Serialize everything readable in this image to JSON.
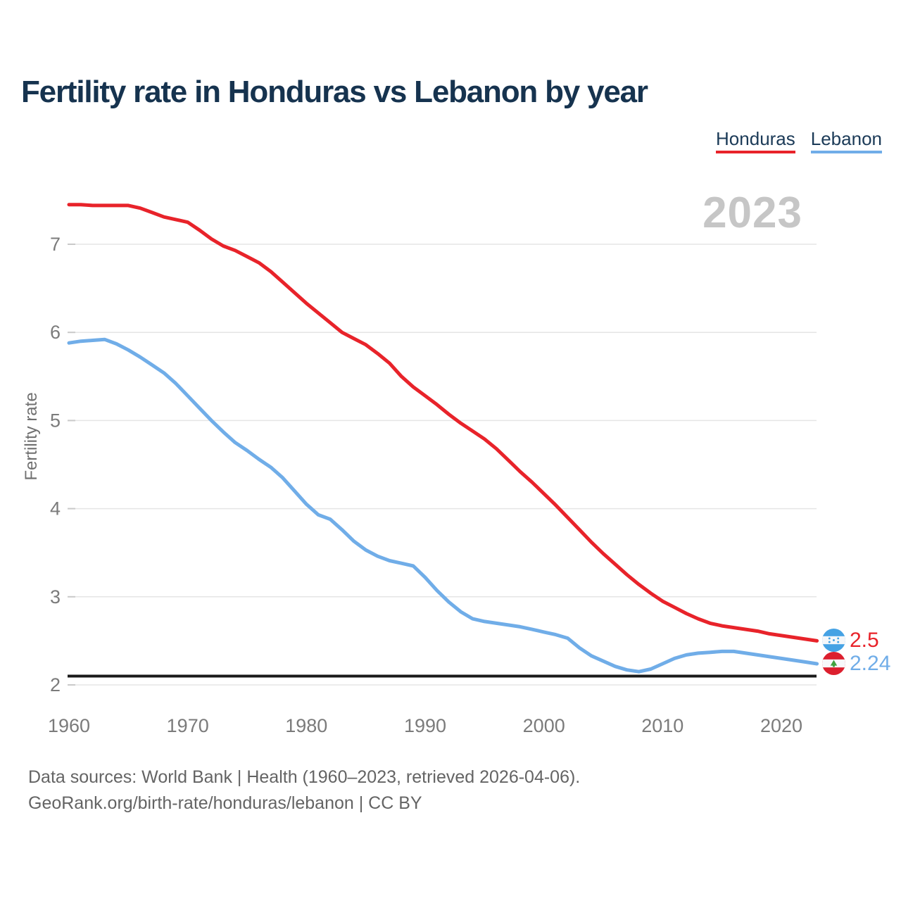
{
  "header": {
    "title": "Fertility rate in Honduras vs Lebanon by year"
  },
  "legend": [
    {
      "label": "Honduras",
      "color": "#e8232a"
    },
    {
      "label": "Lebanon",
      "color": "#70ade8"
    }
  ],
  "watermark": "2023",
  "end_labels": [
    {
      "country": "Honduras",
      "value": "2.5",
      "color": "#e8232a",
      "flag_icon": "honduras-flag"
    },
    {
      "country": "Lebanon",
      "value": "2.24",
      "color": "#70ade8",
      "flag_icon": "lebanon-flag"
    }
  ],
  "footer": {
    "line1": "Data sources: World Bank | Health (1960–2023, retrieved 2026-04-06).",
    "line2": "GeoRank.org/birth-rate/honduras/lebanon | CC BY"
  },
  "chart_data": {
    "type": "line",
    "title": "Fertility rate in Honduras vs Lebanon by year",
    "xlabel": "",
    "ylabel": "Fertility rate",
    "xlim": [
      1960,
      2023
    ],
    "ylim": [
      2,
      7.6
    ],
    "grid": "horizontal",
    "legend_position": "top-right",
    "x_ticks": [
      1960,
      1970,
      1980,
      1990,
      2000,
      2010,
      2020
    ],
    "y_ticks": [
      2,
      3,
      4,
      5,
      6,
      7
    ],
    "replacement_line": {
      "value": 2.1,
      "color": "#1a1a1a"
    },
    "x": [
      1960,
      1961,
      1962,
      1963,
      1964,
      1965,
      1966,
      1967,
      1968,
      1969,
      1970,
      1971,
      1972,
      1973,
      1974,
      1975,
      1976,
      1977,
      1978,
      1979,
      1980,
      1981,
      1982,
      1983,
      1984,
      1985,
      1986,
      1987,
      1988,
      1989,
      1990,
      1991,
      1992,
      1993,
      1994,
      1995,
      1996,
      1997,
      1998,
      1999,
      2000,
      2001,
      2002,
      2003,
      2004,
      2005,
      2006,
      2007,
      2008,
      2009,
      2010,
      2011,
      2012,
      2013,
      2014,
      2015,
      2016,
      2017,
      2018,
      2019,
      2020,
      2021,
      2022,
      2023
    ],
    "series": [
      {
        "name": "Honduras",
        "color": "#e8232a",
        "end_value": 2.5,
        "values": [
          7.45,
          7.45,
          7.44,
          7.44,
          7.44,
          7.44,
          7.41,
          7.36,
          7.31,
          7.28,
          7.25,
          7.16,
          7.06,
          6.98,
          6.93,
          6.86,
          6.79,
          6.69,
          6.57,
          6.45,
          6.33,
          6.22,
          6.11,
          6.0,
          5.93,
          5.86,
          5.76,
          5.65,
          5.5,
          5.38,
          5.28,
          5.18,
          5.07,
          4.97,
          4.88,
          4.79,
          4.68,
          4.55,
          4.42,
          4.3,
          4.17,
          4.04,
          3.9,
          3.76,
          3.62,
          3.49,
          3.37,
          3.25,
          3.14,
          3.04,
          2.95,
          2.88,
          2.81,
          2.75,
          2.7,
          2.67,
          2.65,
          2.63,
          2.61,
          2.58,
          2.56,
          2.54,
          2.52,
          2.5
        ]
      },
      {
        "name": "Lebanon",
        "color": "#70ade8",
        "end_value": 2.24,
        "values": [
          5.88,
          5.9,
          5.91,
          5.92,
          5.87,
          5.8,
          5.72,
          5.63,
          5.54,
          5.42,
          5.28,
          5.14,
          5.0,
          4.87,
          4.75,
          4.66,
          4.56,
          4.47,
          4.35,
          4.2,
          4.05,
          3.93,
          3.88,
          3.76,
          3.63,
          3.53,
          3.46,
          3.41,
          3.38,
          3.35,
          3.22,
          3.07,
          2.94,
          2.83,
          2.75,
          2.72,
          2.7,
          2.68,
          2.66,
          2.63,
          2.6,
          2.57,
          2.53,
          2.42,
          2.33,
          2.27,
          2.21,
          2.17,
          2.15,
          2.18,
          2.24,
          2.3,
          2.34,
          2.36,
          2.37,
          2.38,
          2.38,
          2.36,
          2.34,
          2.32,
          2.3,
          2.28,
          2.26,
          2.24
        ]
      }
    ]
  }
}
